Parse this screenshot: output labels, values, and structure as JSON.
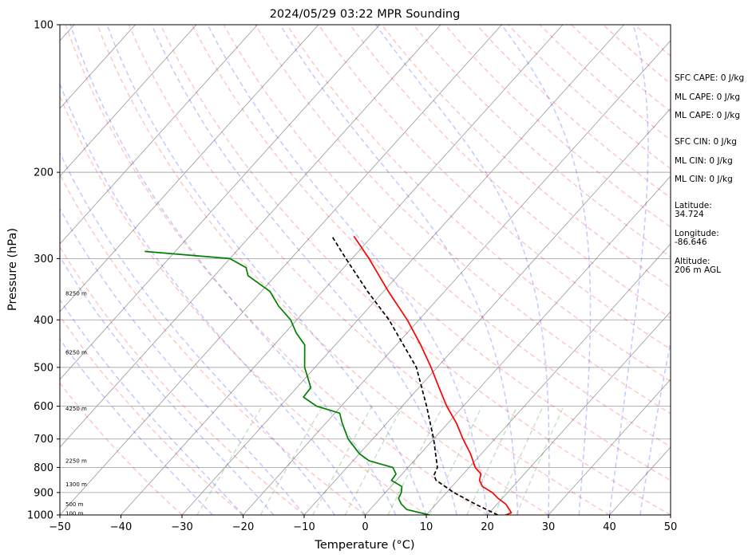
{
  "title": "2024/05/29 03:22 MPR Sounding",
  "chart_data": {
    "type": "skew-t",
    "title": "2024/05/29 03:22 MPR Sounding",
    "xlabel": "Temperature (°C)",
    "ylabel": "Pressure (hPa)",
    "xlim": [
      -50,
      50
    ],
    "ylim": [
      1000,
      100
    ],
    "y_scale": "log",
    "x_ticks": [
      "−50",
      "−40",
      "−30",
      "−20",
      "−10",
      "0",
      "10",
      "20",
      "30",
      "40",
      "50"
    ],
    "x_tick_values": [
      -50,
      -40,
      -30,
      -20,
      -10,
      0,
      10,
      20,
      30,
      40,
      50
    ],
    "y_ticks": [
      "1000",
      "900",
      "800",
      "700",
      "600",
      "500",
      "400",
      "300",
      "200",
      "100"
    ],
    "y_tick_values": [
      1000,
      900,
      800,
      700,
      600,
      500,
      400,
      300,
      200,
      100
    ],
    "height_labels": [
      {
        "text": "100 m",
        "p": 992
      },
      {
        "text": "500 m",
        "p": 950
      },
      {
        "text": "1300 m",
        "p": 866
      },
      {
        "text": "2250 m",
        "p": 775
      },
      {
        "text": "4250 m",
        "p": 607
      },
      {
        "text": "6250 m",
        "p": 466
      },
      {
        "text": "8250 m",
        "p": 353
      }
    ],
    "series": [
      {
        "kind": "temperature",
        "color": "#ff0000",
        "points": [
          {
            "p": 1000,
            "t": 23.0
          },
          {
            "p": 990,
            "t": 23.6
          },
          {
            "p": 975,
            "t": 22.8
          },
          {
            "p": 950,
            "t": 21.4
          },
          {
            "p": 925,
            "t": 19.3
          },
          {
            "p": 900,
            "t": 17.5
          },
          {
            "p": 875,
            "t": 15.0
          },
          {
            "p": 850,
            "t": 13.6
          },
          {
            "p": 825,
            "t": 12.9
          },
          {
            "p": 800,
            "t": 11.0
          },
          {
            "p": 750,
            "t": 8.2
          },
          {
            "p": 700,
            "t": 4.8
          },
          {
            "p": 650,
            "t": 1.4
          },
          {
            "p": 600,
            "t": -2.7
          },
          {
            "p": 550,
            "t": -6.7
          },
          {
            "p": 500,
            "t": -11.0
          },
          {
            "p": 450,
            "t": -16.0
          },
          {
            "p": 400,
            "t": -21.9
          },
          {
            "p": 350,
            "t": -29.2
          },
          {
            "p": 300,
            "t": -37.2
          },
          {
            "p": 270,
            "t": -43.0
          }
        ]
      },
      {
        "kind": "dewpoint",
        "color": "#008000",
        "points": [
          {
            "p": 1000,
            "t": 10.5
          },
          {
            "p": 975,
            "t": 6.0
          },
          {
            "p": 950,
            "t": 4.3
          },
          {
            "p": 925,
            "t": 3.0
          },
          {
            "p": 900,
            "t": 2.6
          },
          {
            "p": 875,
            "t": 1.8
          },
          {
            "p": 850,
            "t": -0.8
          },
          {
            "p": 825,
            "t": -1.0
          },
          {
            "p": 800,
            "t": -2.5
          },
          {
            "p": 775,
            "t": -7.4
          },
          {
            "p": 750,
            "t": -10.0
          },
          {
            "p": 700,
            "t": -14.0
          },
          {
            "p": 650,
            "t": -17.3
          },
          {
            "p": 620,
            "t": -19.2
          },
          {
            "p": 600,
            "t": -24.0
          },
          {
            "p": 575,
            "t": -27.5
          },
          {
            "p": 550,
            "t": -27.7
          },
          {
            "p": 500,
            "t": -31.7
          },
          {
            "p": 450,
            "t": -35.0
          },
          {
            "p": 425,
            "t": -38.2
          },
          {
            "p": 400,
            "t": -41.0
          },
          {
            "p": 375,
            "t": -45.0
          },
          {
            "p": 350,
            "t": -48.6
          },
          {
            "p": 325,
            "t": -54.5
          },
          {
            "p": 313,
            "t": -56.0
          },
          {
            "p": 300,
            "t": -60.0
          },
          {
            "p": 290,
            "t": -75.0
          }
        ]
      },
      {
        "kind": "parcel",
        "color": "#000000",
        "style": "dashed",
        "points": [
          {
            "p": 1000,
            "t": 21.7
          },
          {
            "p": 950,
            "t": 16.4
          },
          {
            "p": 900,
            "t": 11.2
          },
          {
            "p": 850,
            "t": 6.5
          },
          {
            "p": 830,
            "t": 5.4
          },
          {
            "p": 800,
            "t": 4.8
          },
          {
            "p": 700,
            "t": 0.0
          },
          {
            "p": 600,
            "t": -6.0
          },
          {
            "p": 500,
            "t": -13.4
          },
          {
            "p": 400,
            "t": -24.9
          },
          {
            "p": 350,
            "t": -32.6
          },
          {
            "p": 300,
            "t": -41.0
          },
          {
            "p": 270,
            "t": -46.6
          }
        ]
      }
    ],
    "reference_lines": {
      "isotherm_color": "#000000",
      "dry_adiabat_color": "#ff0000",
      "moist_adiabat_color": "#0000ff",
      "mixing_ratio_color": "#008000"
    }
  },
  "info_panel": {
    "sfc_cape": "SFC CAPE: 0 J/kg",
    "ml_cape_1": "ML CAPE: 0 J/kg",
    "ml_cape_2": "ML CAPE: 0 J/kg",
    "sfc_cin": "SFC CIN: 0 J/kg",
    "ml_cin_1": "ML CIN: 0 J/kg",
    "ml_cin_2": "ML CIN: 0 J/kg",
    "latitude_label": "Latitude:",
    "latitude_value": "34.724",
    "longitude_label": "Longitude:",
    "longitude_value": "-86.646",
    "altitude_label": "Altitude:",
    "altitude_value": "206 m AGL"
  }
}
